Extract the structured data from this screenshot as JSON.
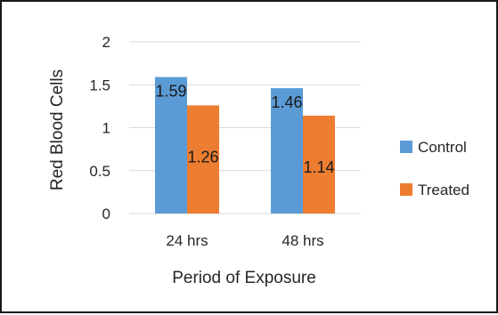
{
  "chart_data": {
    "type": "bar",
    "title": "",
    "xlabel": "Period of Exposure",
    "ylabel": "Red Blood Cells",
    "categories": [
      "24 hrs",
      "48 hrs"
    ],
    "series": [
      {
        "name": "Control",
        "values": [
          1.59,
          1.46
        ],
        "labels": [
          "1.59",
          "1.46"
        ],
        "color": "#5B9BD5"
      },
      {
        "name": "Treated",
        "values": [
          1.26,
          1.14
        ],
        "labels": [
          "1.26",
          "1.14"
        ],
        "color": "#ED7D31"
      }
    ],
    "ylim": [
      0,
      2
    ],
    "yticks": [
      "0",
      "0.5",
      "1",
      "1.5",
      "2"
    ],
    "grid": true,
    "legend_position": "right"
  }
}
